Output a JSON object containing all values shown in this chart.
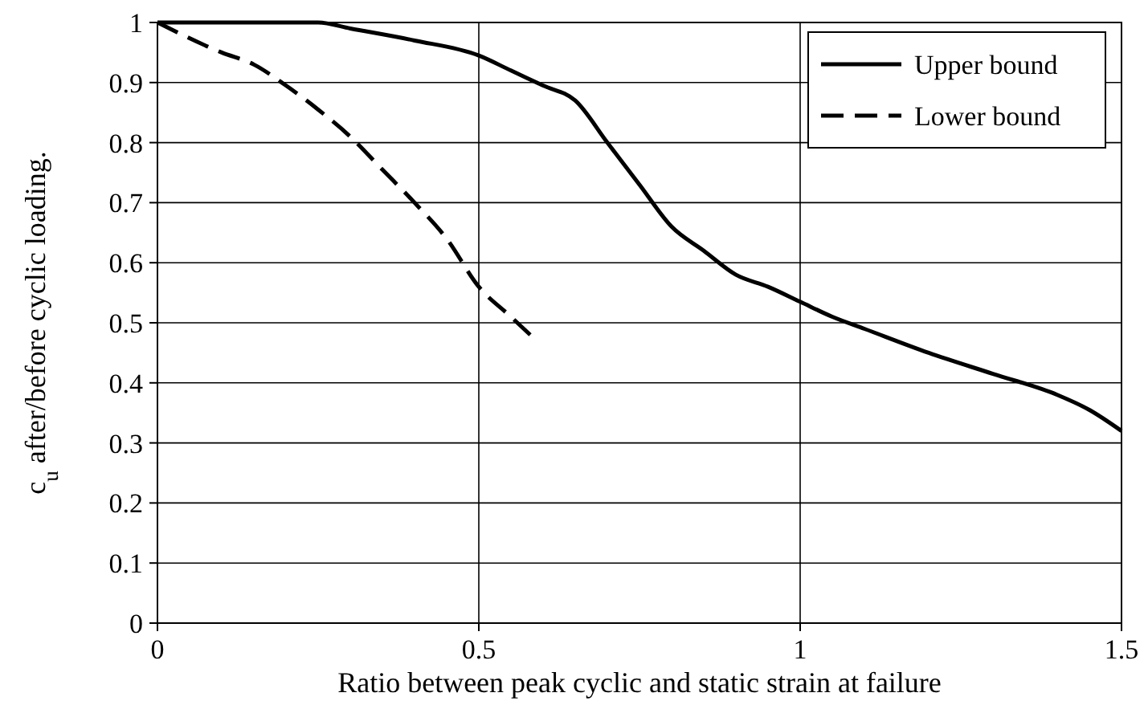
{
  "chart_data": {
    "type": "line",
    "xlabel": "Ratio between peak cyclic and static strain at failure",
    "ylabel": "c$_{u}$ after/before cyclic loading.",
    "xlim": [
      0,
      1.5
    ],
    "xticks": [
      0,
      0.5,
      1,
      1.5
    ],
    "ylim": [
      0,
      1
    ],
    "yticks": [
      0,
      0.1,
      0.2,
      0.3,
      0.4,
      0.5,
      0.6,
      0.7,
      0.8,
      0.9,
      1
    ],
    "grid": true,
    "legend": "top right",
    "marker": "none",
    "series": [
      {
        "name": "Upper bound",
        "color": "#000000",
        "line_style": "solid",
        "x": [
          0,
          0.25,
          0.3,
          0.4,
          0.5,
          0.55,
          0.6,
          0.65,
          0.7,
          0.75,
          0.8,
          0.85,
          0.9,
          0.95,
          1,
          1.05,
          1.1,
          1.2,
          1.3,
          1.4,
          1.45,
          1.5
        ],
        "values": [
          1,
          1,
          0.99,
          0.97,
          0.945,
          0.92,
          0.895,
          0.87,
          0.8,
          0.73,
          0.66,
          0.62,
          0.58,
          0.56,
          0.535,
          0.51,
          0.49,
          0.45,
          0.415,
          0.38,
          0.355,
          0.32
        ]
      },
      {
        "name": "Lower bound",
        "color": "#000000",
        "line_style": "dashed",
        "x": [
          0,
          0.1,
          0.15,
          0.2,
          0.25,
          0.3,
          0.35,
          0.4,
          0.45,
          0.5,
          0.55,
          0.58
        ],
        "values": [
          1,
          0.95,
          0.93,
          0.895,
          0.855,
          0.81,
          0.755,
          0.7,
          0.64,
          0.56,
          0.51,
          0.48
        ]
      }
    ]
  }
}
